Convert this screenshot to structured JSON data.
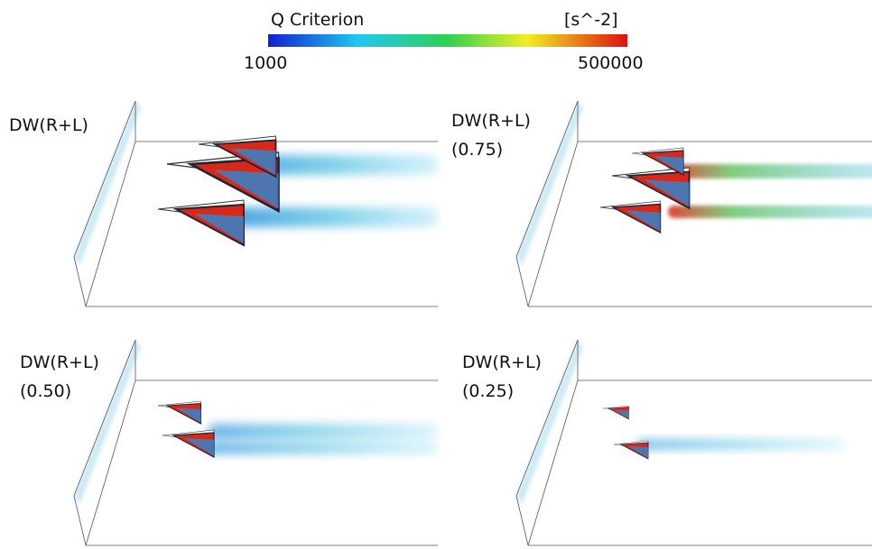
{
  "colorbar": {
    "title": "Q Criterion",
    "unit": "[s^-2]",
    "min_label": "1000",
    "max_label": "500000"
  },
  "panels": [
    {
      "label": "DW(R+L)"
    },
    {
      "label": "DW(R+L)",
      "sublabel": "(0.75)"
    },
    {
      "label": "DW(R+L)",
      "sublabel": "(0.50)"
    },
    {
      "label": "DW(R+L)",
      "sublabel": "(0.25)"
    }
  ]
}
